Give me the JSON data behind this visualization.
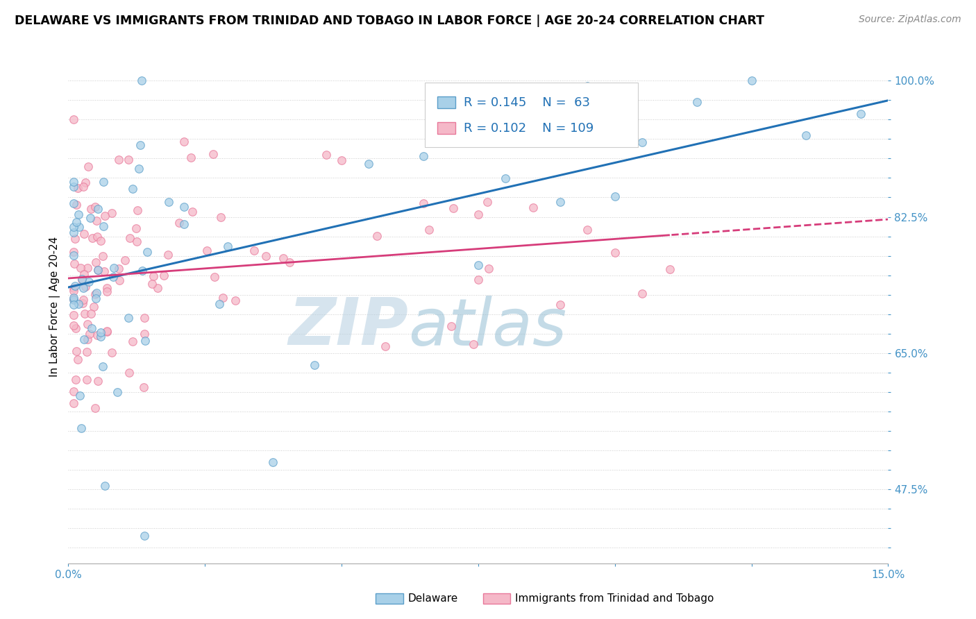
{
  "title": "DELAWARE VS IMMIGRANTS FROM TRINIDAD AND TOBAGO IN LABOR FORCE | AGE 20-24 CORRELATION CHART",
  "source": "Source: ZipAtlas.com",
  "ylabel": "In Labor Force | Age 20-24",
  "xlim": [
    0.0,
    0.15
  ],
  "ylim": [
    0.38,
    1.04
  ],
  "delaware_color": "#a8d0e8",
  "delaware_edge": "#5b9ec9",
  "trinidad_color": "#f5b8c8",
  "trinidad_edge": "#e8789a",
  "trend_blue": "#2171b5",
  "trend_pink": "#d63c7a",
  "watermark_zip": "#b8cfe0",
  "watermark_atlas": "#90bdd6",
  "legend_label_delaware": "Delaware",
  "legend_label_trinidad": "Immigrants from Trinidad and Tobago",
  "delaware_R": 0.145,
  "delaware_N": 63,
  "trinidad_R": 0.102,
  "trinidad_N": 109,
  "ytick_labeled": [
    0.475,
    0.65,
    0.825,
    1.0
  ],
  "ytick_labeled_str": [
    "47.5%",
    "65.0%",
    "82.5%",
    "100.0%"
  ]
}
